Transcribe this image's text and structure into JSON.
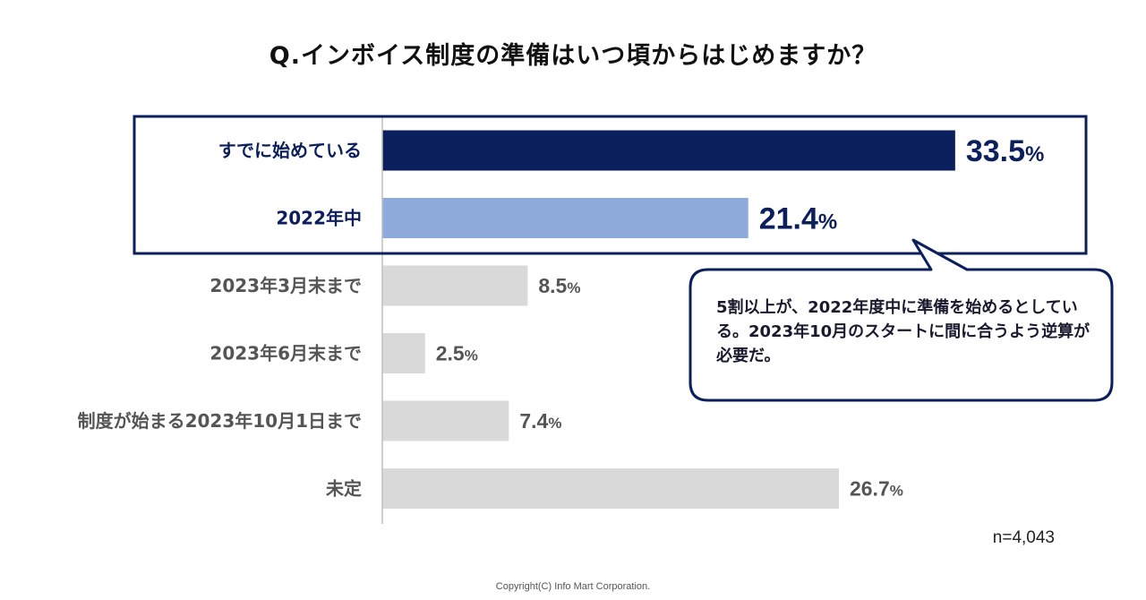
{
  "chart_data": {
    "type": "bar",
    "orientation": "horizontal",
    "title": "Q.インボイス制度の準備はいつ頃からはじめますか？",
    "categories": [
      "すでに始めている",
      "2022年中",
      "2023年3月末まで",
      "2023年6月末まで",
      "制度が始まる2023年10月1日まで",
      "未定"
    ],
    "values": [
      33.5,
      21.4,
      8.5,
      2.5,
      7.4,
      26.7
    ],
    "value_labels": [
      "33.5",
      "21.4",
      "8.5",
      "2.5",
      "7.4",
      "26.7"
    ],
    "unit": "%",
    "xlim": [
      0,
      40
    ],
    "highlighted": [
      true,
      true,
      false,
      false,
      false,
      false
    ],
    "colors": {
      "highlight_primary": "#0b1f5c",
      "highlight_secondary": "#8eaadb",
      "default_bar": "#d9d9d9",
      "highlight_label": "#0b1f5c",
      "default_label": "#555555",
      "frame": "#0b1f5c"
    },
    "annotation": "5割以上が、2022年度中に準備を始めるとしている。2023年10月のスタートに間に合うよう逆算が必要だ。",
    "sample_size": "n=4,043"
  },
  "footer": {
    "copyright": "Copyright(C) Info Mart Corporation."
  }
}
